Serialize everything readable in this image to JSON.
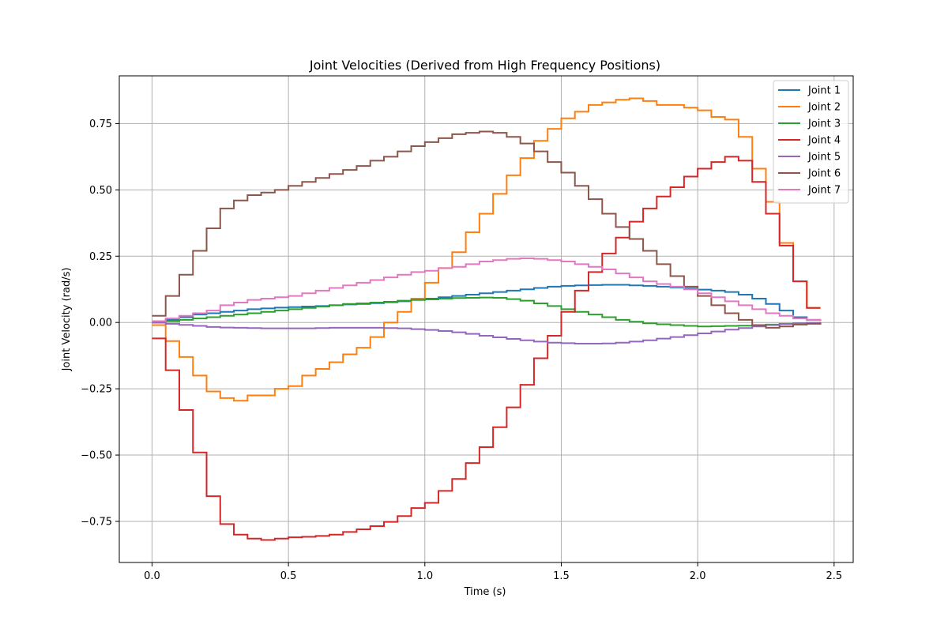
{
  "chart_data": {
    "type": "line",
    "step": true,
    "title": "Joint Velocities (Derived from High Frequency Positions)",
    "xlabel": "Time (s)",
    "ylabel": "Joint Velocity (rad/s)",
    "xlim": [
      -0.12,
      2.57
    ],
    "ylim": [
      -0.905,
      0.93
    ],
    "xticks": [
      0.0,
      0.5,
      1.0,
      1.5,
      2.0,
      2.5
    ],
    "xtick_labels": [
      "0.0",
      "0.5",
      "1.0",
      "1.5",
      "2.0",
      "2.5"
    ],
    "yticks": [
      -0.75,
      -0.5,
      -0.25,
      0.0,
      0.25,
      0.5,
      0.75
    ],
    "ytick_labels": [
      "−0.75",
      "−0.50",
      "−0.25",
      "0.00",
      "0.25",
      "0.50",
      "0.75"
    ],
    "grid": true,
    "legend_position": "top-right",
    "x": [
      0.0,
      0.05,
      0.1,
      0.15,
      0.2,
      0.25,
      0.3,
      0.35,
      0.4,
      0.45,
      0.5,
      0.55,
      0.6,
      0.65,
      0.7,
      0.75,
      0.8,
      0.85,
      0.9,
      0.95,
      1.0,
      1.05,
      1.1,
      1.15,
      1.2,
      1.25,
      1.3,
      1.35,
      1.4,
      1.45,
      1.5,
      1.55,
      1.6,
      1.65,
      1.7,
      1.75,
      1.8,
      1.85,
      1.9,
      1.95,
      2.0,
      2.05,
      2.1,
      2.15,
      2.2,
      2.25,
      2.3,
      2.35,
      2.4,
      2.45
    ],
    "series": [
      {
        "name": "Joint 1",
        "color": "#1f77b4",
        "values": [
          0.0,
          0.01,
          0.02,
          0.03,
          0.035,
          0.04,
          0.045,
          0.05,
          0.053,
          0.056,
          0.058,
          0.06,
          0.062,
          0.065,
          0.068,
          0.07,
          0.073,
          0.076,
          0.08,
          0.085,
          0.09,
          0.095,
          0.1,
          0.105,
          0.11,
          0.115,
          0.12,
          0.125,
          0.13,
          0.135,
          0.138,
          0.14,
          0.141,
          0.142,
          0.142,
          0.14,
          0.138,
          0.135,
          0.132,
          0.128,
          0.124,
          0.12,
          0.115,
          0.105,
          0.09,
          0.07,
          0.045,
          0.02,
          0.01,
          0.01
        ]
      },
      {
        "name": "Joint 2",
        "color": "#ff7f0e",
        "values": [
          -0.01,
          -0.07,
          -0.13,
          -0.2,
          -0.26,
          -0.285,
          -0.295,
          -0.275,
          -0.275,
          -0.25,
          -0.24,
          -0.2,
          -0.175,
          -0.15,
          -0.12,
          -0.095,
          -0.055,
          0.0,
          0.04,
          0.09,
          0.15,
          0.205,
          0.265,
          0.34,
          0.41,
          0.485,
          0.555,
          0.62,
          0.685,
          0.73,
          0.77,
          0.795,
          0.82,
          0.83,
          0.84,
          0.845,
          0.835,
          0.82,
          0.82,
          0.81,
          0.8,
          0.775,
          0.765,
          0.7,
          0.58,
          0.455,
          0.3,
          0.155,
          0.055,
          0.055
        ]
      },
      {
        "name": "Joint 3",
        "color": "#2ca02c",
        "values": [
          0.0,
          0.005,
          0.01,
          0.015,
          0.02,
          0.025,
          0.03,
          0.035,
          0.04,
          0.045,
          0.05,
          0.055,
          0.06,
          0.065,
          0.07,
          0.072,
          0.075,
          0.078,
          0.082,
          0.085,
          0.087,
          0.09,
          0.092,
          0.093,
          0.094,
          0.093,
          0.088,
          0.082,
          0.072,
          0.062,
          0.05,
          0.04,
          0.03,
          0.02,
          0.01,
          0.003,
          -0.003,
          -0.007,
          -0.01,
          -0.013,
          -0.015,
          -0.014,
          -0.013,
          -0.012,
          -0.01,
          -0.008,
          -0.005,
          -0.003,
          -0.001,
          0.0
        ]
      },
      {
        "name": "Joint 4",
        "color": "#d62728",
        "values": [
          -0.06,
          -0.18,
          -0.33,
          -0.49,
          -0.655,
          -0.76,
          -0.8,
          -0.815,
          -0.82,
          -0.815,
          -0.81,
          -0.808,
          -0.805,
          -0.8,
          -0.79,
          -0.78,
          -0.768,
          -0.752,
          -0.73,
          -0.7,
          -0.68,
          -0.635,
          -0.59,
          -0.53,
          -0.47,
          -0.395,
          -0.32,
          -0.235,
          -0.135,
          -0.05,
          0.04,
          0.12,
          0.19,
          0.26,
          0.32,
          0.38,
          0.43,
          0.475,
          0.51,
          0.55,
          0.58,
          0.605,
          0.625,
          0.61,
          0.53,
          0.41,
          0.29,
          0.155,
          0.055,
          0.055
        ]
      },
      {
        "name": "Joint 5",
        "color": "#9467bd",
        "values": [
          -0.001,
          -0.005,
          -0.009,
          -0.013,
          -0.017,
          -0.019,
          -0.02,
          -0.021,
          -0.022,
          -0.022,
          -0.022,
          -0.022,
          -0.021,
          -0.02,
          -0.02,
          -0.02,
          -0.02,
          -0.021,
          -0.022,
          -0.025,
          -0.028,
          -0.032,
          -0.037,
          -0.043,
          -0.05,
          -0.056,
          -0.062,
          -0.067,
          -0.072,
          -0.076,
          -0.078,
          -0.08,
          -0.08,
          -0.079,
          -0.076,
          -0.072,
          -0.067,
          -0.061,
          -0.055,
          -0.048,
          -0.041,
          -0.034,
          -0.027,
          -0.021,
          -0.015,
          -0.01,
          -0.006,
          -0.003,
          -0.001,
          0.0
        ]
      },
      {
        "name": "Joint 6",
        "color": "#8c564b",
        "values": [
          0.025,
          0.1,
          0.18,
          0.27,
          0.355,
          0.43,
          0.46,
          0.48,
          0.49,
          0.5,
          0.515,
          0.53,
          0.545,
          0.56,
          0.575,
          0.59,
          0.61,
          0.625,
          0.645,
          0.665,
          0.68,
          0.695,
          0.71,
          0.715,
          0.72,
          0.715,
          0.7,
          0.675,
          0.645,
          0.605,
          0.565,
          0.515,
          0.465,
          0.41,
          0.36,
          0.315,
          0.27,
          0.22,
          0.175,
          0.135,
          0.1,
          0.065,
          0.035,
          0.01,
          -0.01,
          -0.02,
          -0.015,
          -0.008,
          -0.005,
          0.0
        ]
      },
      {
        "name": "Joint 7",
        "color": "#e377c2",
        "values": [
          0.005,
          0.015,
          0.025,
          0.035,
          0.045,
          0.065,
          0.075,
          0.085,
          0.09,
          0.095,
          0.1,
          0.11,
          0.12,
          0.13,
          0.14,
          0.15,
          0.16,
          0.17,
          0.18,
          0.19,
          0.195,
          0.205,
          0.21,
          0.22,
          0.23,
          0.235,
          0.24,
          0.242,
          0.24,
          0.235,
          0.23,
          0.22,
          0.21,
          0.2,
          0.185,
          0.17,
          0.155,
          0.145,
          0.135,
          0.125,
          0.11,
          0.095,
          0.08,
          0.065,
          0.05,
          0.035,
          0.025,
          0.015,
          0.01,
          0.005
        ]
      }
    ]
  }
}
